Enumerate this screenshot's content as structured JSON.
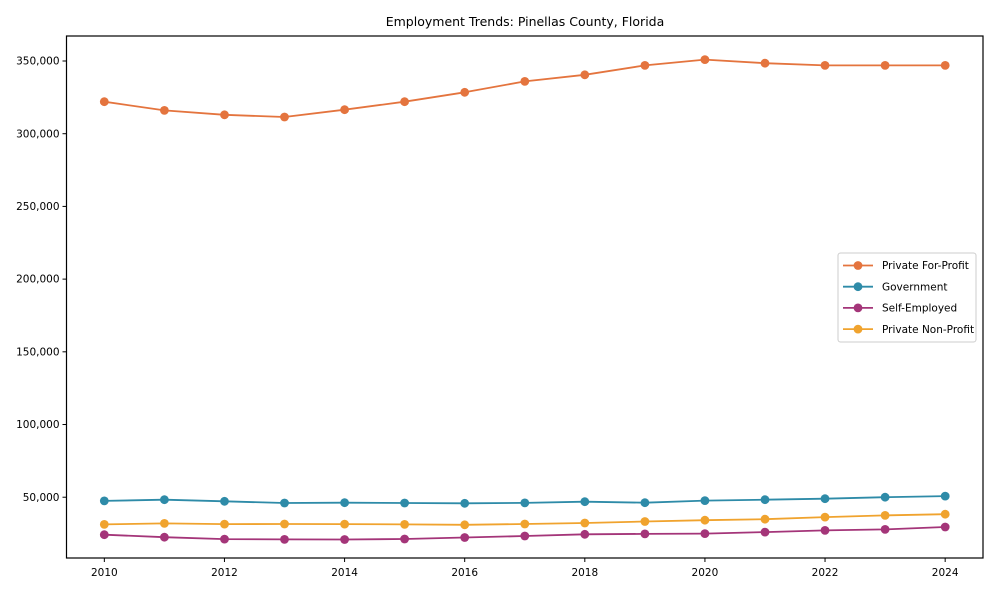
{
  "chart_data": {
    "type": "line",
    "title": "Employment Trends: Pinellas County, Florida",
    "xlabel": "",
    "ylabel": "",
    "grid": false,
    "legend_position": "center-right",
    "x": [
      2010,
      2011,
      2012,
      2013,
      2014,
      2015,
      2016,
      2017,
      2018,
      2019,
      2020,
      2021,
      2022,
      2023,
      2024
    ],
    "xticks": [
      2010,
      2012,
      2014,
      2016,
      2018,
      2020,
      2022,
      2024
    ],
    "yticks": [
      50000,
      100000,
      150000,
      200000,
      250000,
      300000,
      350000
    ],
    "xlim": [
      2009.37,
      2024.63
    ],
    "ylim": [
      8200,
      367200
    ],
    "marker": "circle",
    "series": [
      {
        "name": "Private For-Profit",
        "color": "#e4743e",
        "values": [
          322000,
          316000,
          313000,
          311500,
          316500,
          322000,
          328500,
          336000,
          340500,
          347000,
          351000,
          348500,
          347000,
          347000,
          347000
        ]
      },
      {
        "name": "Government",
        "color": "#2e8ba8",
        "values": [
          47500,
          48300,
          47200,
          46000,
          46200,
          46000,
          45800,
          46100,
          46900,
          46200,
          47700,
          48300,
          49000,
          50000,
          50800
        ]
      },
      {
        "name": "Self-Employed",
        "color": "#a43579",
        "values": [
          24200,
          22500,
          21200,
          21000,
          20900,
          21300,
          22300,
          23300,
          24500,
          24800,
          25000,
          26000,
          27200,
          27900,
          29500
        ]
      },
      {
        "name": "Private Non-Profit",
        "color": "#f0a32e",
        "values": [
          31300,
          32000,
          31500,
          31600,
          31500,
          31300,
          31000,
          31600,
          32300,
          33300,
          34200,
          34900,
          36300,
          37500,
          38300
        ]
      }
    ]
  }
}
